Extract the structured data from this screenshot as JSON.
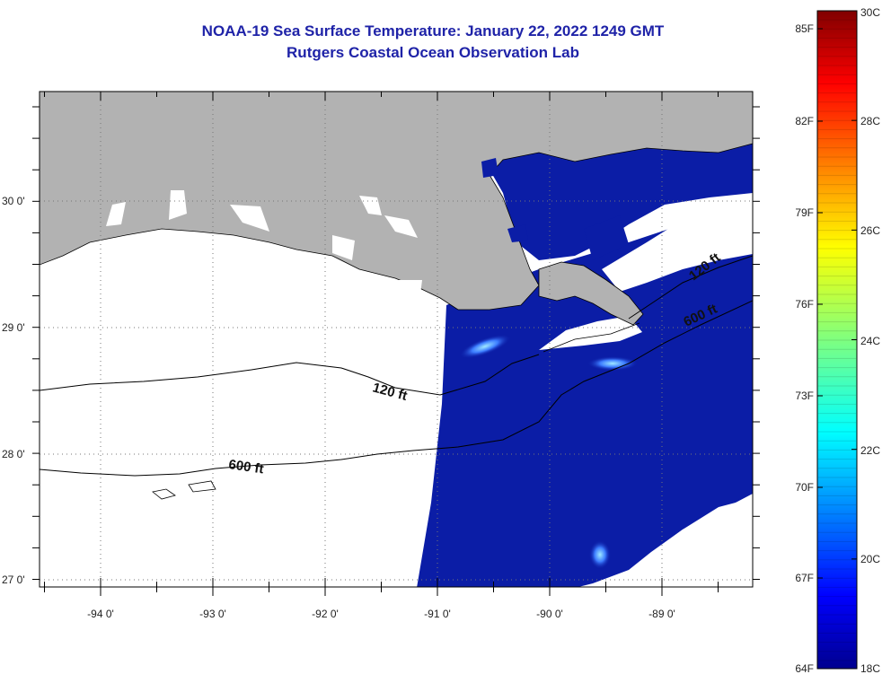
{
  "title": "NOAA-19 Sea Surface Temperature:  January 22, 2022 1249 GMT",
  "subtitle": "Rutgers Coastal Ocean Observation Lab",
  "map": {
    "lon_labels": [
      "-94 0'",
      "-93 0'",
      "-92 0'",
      "-91 0'",
      "-90 0'",
      "-89 0'"
    ],
    "lat_labels": [
      "30 0'",
      "29 0'",
      "28 0'",
      "27 0'"
    ],
    "contours": [
      {
        "label": "120 ft"
      },
      {
        "label": "600 ft"
      },
      {
        "label": "600 ft"
      },
      {
        "label": "120 ft"
      }
    ],
    "colors": {
      "land": "#b2b2b2",
      "no_data": "#ffffff",
      "sea_cold": "#0b1da6"
    }
  },
  "colorbar": {
    "f_labels": [
      "85F",
      "82F",
      "79F",
      "76F",
      "73F",
      "70F",
      "67F",
      "64F"
    ],
    "c_labels": [
      "30C",
      "28C",
      "26C",
      "24C",
      "22C",
      "20C",
      "18C"
    ],
    "min_c": 18,
    "max_c": 30
  }
}
